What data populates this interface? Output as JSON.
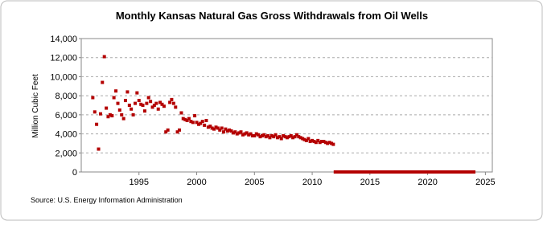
{
  "chart_data": {
    "type": "scatter",
    "title": "Monthly Kansas Natural Gas Gross Withdrawals from Oil Wells",
    "y_label": "Million Cubic Feet",
    "source": "Source: U.S. Energy Information Administration",
    "xlim": [
      1990,
      2025.6
    ],
    "ylim": [
      0,
      14000
    ],
    "xticks": [
      1995,
      2000,
      2005,
      2010,
      2015,
      2020,
      2025
    ],
    "yticks": [
      0,
      {
        "value": 2000,
        "label": "2,000"
      },
      {
        "value": 4000,
        "label": "4,000"
      },
      {
        "value": 6000,
        "label": "6,000"
      },
      {
        "value": 8000,
        "label": "8,000"
      },
      {
        "value": 10000,
        "label": "10,000"
      },
      {
        "value": 12000,
        "label": "12,000"
      },
      {
        "value": 14000,
        "label": "14,000"
      }
    ],
    "grid": true,
    "x": [
      1991,
      1991.17,
      1991.33,
      1991.5,
      1991.67,
      1991.83,
      1992,
      1992.17,
      1992.33,
      1992.5,
      1992.67,
      1992.83,
      1993,
      1993.17,
      1993.33,
      1993.5,
      1993.67,
      1993.83,
      1994,
      1994.17,
      1994.33,
      1994.5,
      1994.67,
      1994.83,
      1995,
      1995.17,
      1995.33,
      1995.5,
      1995.67,
      1995.83,
      1996,
      1996.17,
      1996.33,
      1996.5,
      1996.67,
      1996.83,
      1997,
      1997.17,
      1997.33,
      1997.5,
      1997.67,
      1997.83,
      1998,
      1998.17,
      1998.33,
      1998.5,
      1998.67,
      1998.83,
      1999,
      1999.17,
      1999.33,
      1999.5,
      1999.67,
      1999.83,
      2000,
      2000.17,
      2000.33,
      2000.5,
      2000.67,
      2000.83,
      2001,
      2001.17,
      2001.33,
      2001.5,
      2001.67,
      2001.83,
      2002,
      2002.17,
      2002.33,
      2002.5,
      2002.67,
      2002.83,
      2003,
      2003.17,
      2003.33,
      2003.5,
      2003.67,
      2003.83,
      2004,
      2004.17,
      2004.33,
      2004.5,
      2004.67,
      2004.83,
      2005,
      2005.17,
      2005.33,
      2005.5,
      2005.67,
      2005.83,
      2006,
      2006.17,
      2006.33,
      2006.5,
      2006.67,
      2006.83,
      2007,
      2007.17,
      2007.33,
      2007.5,
      2007.67,
      2007.83,
      2008,
      2008.17,
      2008.33,
      2008.5,
      2008.67,
      2008.83,
      2009,
      2009.17,
      2009.33,
      2009.5,
      2009.67,
      2009.83,
      2010,
      2010.17,
      2010.33,
      2010.5,
      2010.67,
      2010.83,
      2011,
      2011.17,
      2011.33,
      2011.5,
      2011.67,
      2011.83,
      2012,
      2012.25,
      2012.5,
      2012.75,
      2013,
      2013.25,
      2013.5,
      2013.75,
      2014,
      2014.25,
      2014.5,
      2014.75,
      2015,
      2015.25,
      2015.5,
      2015.75,
      2016,
      2016.25,
      2016.5,
      2016.75,
      2017,
      2017.25,
      2017.5,
      2017.75,
      2018,
      2018.25,
      2018.5,
      2018.75,
      2019,
      2019.25,
      2019.5,
      2019.75,
      2020,
      2020.25,
      2020.5,
      2020.75,
      2021,
      2021.25,
      2021.5,
      2021.75,
      2022,
      2022.25,
      2022.5,
      2022.75,
      2023,
      2023.25,
      2023.5,
      2023.75,
      2024
    ],
    "series": [
      {
        "color": "#b40000",
        "values": [
          7800,
          6300,
          5000,
          2400,
          6100,
          9400,
          12100,
          6700,
          5800,
          6000,
          5900,
          7800,
          8500,
          7200,
          6500,
          6000,
          5600,
          7500,
          8400,
          7000,
          6600,
          6000,
          7200,
          8300,
          7500,
          7100,
          7000,
          6400,
          7200,
          7800,
          7400,
          6800,
          7000,
          7200,
          6600,
          7300,
          7100,
          6900,
          4200,
          4400,
          7300,
          7600,
          7200,
          6800,
          4200,
          4400,
          6200,
          5600,
          5500,
          5400,
          5600,
          5300,
          5200,
          5900,
          5200,
          5000,
          5100,
          5300,
          4900,
          5400,
          4700,
          4800,
          4600,
          4500,
          4700,
          4600,
          4400,
          4600,
          4200,
          4500,
          4300,
          4400,
          4300,
          4100,
          4200,
          4000,
          4100,
          4200,
          3900,
          4000,
          4100,
          3900,
          4000,
          3800,
          3800,
          4000,
          3900,
          3700,
          3800,
          3900,
          3700,
          3800,
          3600,
          3800,
          3700,
          3900,
          3600,
          3700,
          3500,
          3800,
          3700,
          3600,
          3700,
          3800,
          3600,
          3700,
          3900,
          3700,
          3600,
          3500,
          3400,
          3300,
          3500,
          3200,
          3300,
          3200,
          3100,
          3300,
          3100,
          3200,
          3200,
          3100,
          3000,
          3100,
          3000,
          2900,
          0,
          0,
          0,
          0,
          0,
          0,
          0,
          0,
          0,
          0,
          0,
          0,
          0,
          0,
          0,
          0,
          0,
          0,
          0,
          0,
          0,
          0,
          0,
          0,
          0,
          0,
          0,
          0,
          0,
          0,
          0,
          0,
          0,
          0,
          0,
          0,
          0,
          0,
          0,
          0,
          0,
          0,
          0,
          0,
          0,
          0,
          0,
          0,
          0
        ]
      }
    ]
  }
}
